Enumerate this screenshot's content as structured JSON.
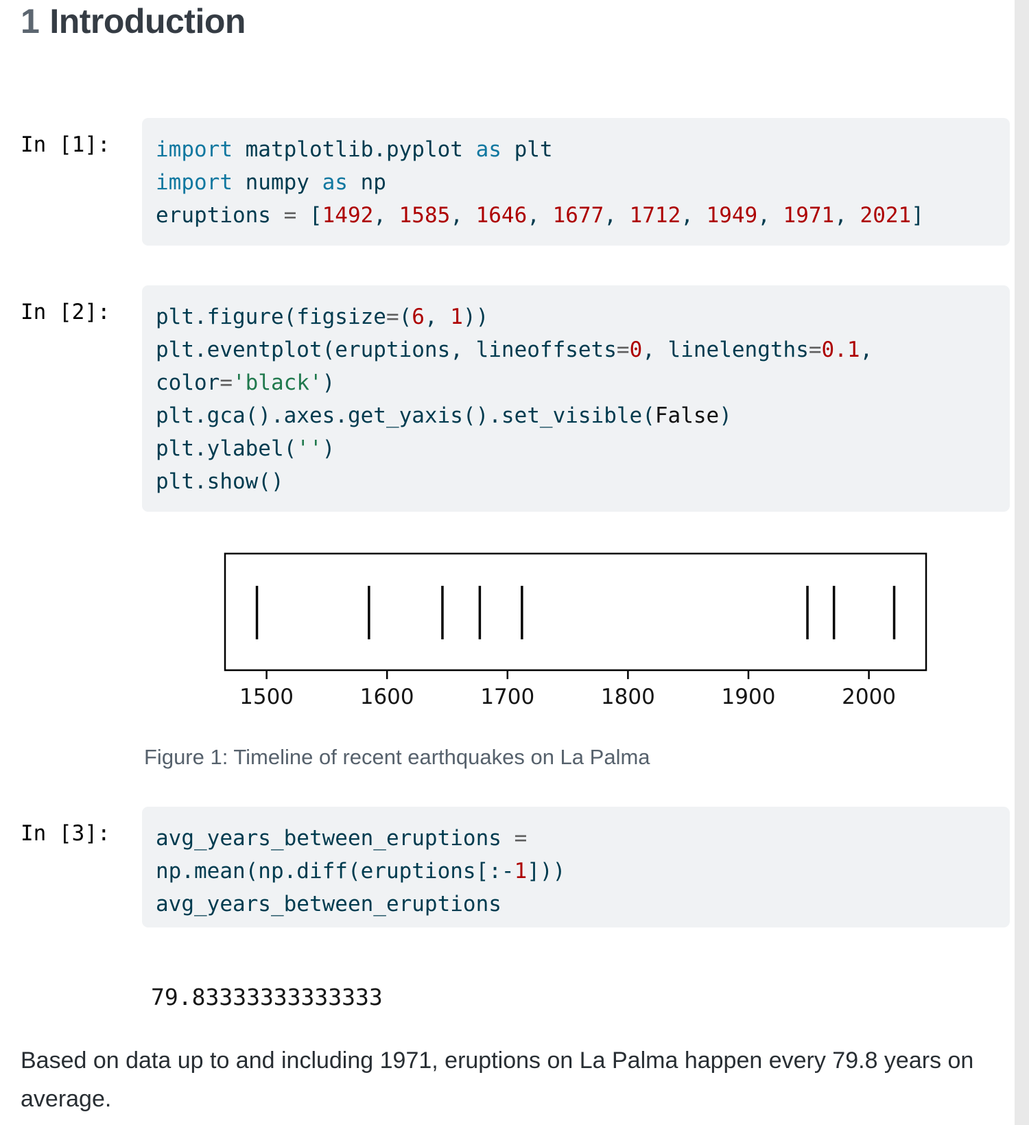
{
  "heading": {
    "number": "1",
    "text": "Introduction"
  },
  "cells": [
    {
      "label": "In [1]:",
      "lines": [
        [
          [
            "kw",
            "import"
          ],
          [
            "id",
            " matplotlib.pyplot"
          ],
          [
            "kw",
            " as"
          ],
          [
            "id",
            " plt"
          ]
        ],
        [
          [
            "kw",
            "import"
          ],
          [
            "id",
            " numpy"
          ],
          [
            "kw",
            " as"
          ],
          [
            "id",
            " np"
          ]
        ],
        [
          [
            "id",
            "eruptions "
          ],
          [
            "op",
            "="
          ],
          [
            "id",
            " ["
          ],
          [
            "num",
            "1492"
          ],
          [
            "id",
            ", "
          ],
          [
            "num",
            "1585"
          ],
          [
            "id",
            ", "
          ],
          [
            "num",
            "1646"
          ],
          [
            "id",
            ", "
          ],
          [
            "num",
            "1677"
          ],
          [
            "id",
            ", "
          ],
          [
            "num",
            "1712"
          ],
          [
            "id",
            ", "
          ],
          [
            "num",
            "1949"
          ],
          [
            "id",
            ", "
          ],
          [
            "num",
            "1971"
          ],
          [
            "id",
            ", "
          ],
          [
            "num",
            "2021"
          ],
          [
            "id",
            "]"
          ]
        ]
      ]
    },
    {
      "label": "In [2]:",
      "lines": [
        [
          [
            "id",
            "plt.figure(figsize"
          ],
          [
            "op",
            "="
          ],
          [
            "id",
            "("
          ],
          [
            "num",
            "6"
          ],
          [
            "id",
            ", "
          ],
          [
            "num",
            "1"
          ],
          [
            "id",
            "))"
          ]
        ],
        [
          [
            "id",
            "plt.eventplot(eruptions, lineoffsets"
          ],
          [
            "op",
            "="
          ],
          [
            "num",
            "0"
          ],
          [
            "id",
            ", linelengths"
          ],
          [
            "op",
            "="
          ],
          [
            "num",
            "0.1"
          ],
          [
            "id",
            ","
          ]
        ],
        [
          [
            "id",
            "color"
          ],
          [
            "op",
            "="
          ],
          [
            "str",
            "'black'"
          ],
          [
            "id",
            ")"
          ]
        ],
        [
          [
            "id",
            "plt.gca().axes.get_yaxis().set_visible("
          ],
          [
            "const",
            "False"
          ],
          [
            "id",
            ")"
          ]
        ],
        [
          [
            "id",
            "plt.ylabel("
          ],
          [
            "str",
            "''"
          ],
          [
            "id",
            ")"
          ]
        ],
        [
          [
            "id",
            "plt.show()"
          ]
        ]
      ]
    },
    {
      "label": "In [3]:",
      "lines": [
        [
          [
            "id",
            "avg_years_between_eruptions "
          ],
          [
            "op",
            "="
          ]
        ],
        [
          [
            "id",
            "np.mean(np.diff(eruptions[:-"
          ],
          [
            "num",
            "1"
          ],
          [
            "id",
            "]))"
          ]
        ],
        [
          [
            "id",
            "avg_years_between_eruptions"
          ]
        ]
      ],
      "output": "79.83333333333333"
    }
  ],
  "figure": {
    "caption": "Figure 1: Timeline of recent earthquakes on La Palma"
  },
  "chart_data": {
    "type": "scatter",
    "subtype": "eventplot-timeline",
    "title": "",
    "xlabel": "",
    "ylabel": "",
    "series": [
      {
        "name": "eruptions",
        "values": [
          1492,
          1585,
          1646,
          1677,
          1712,
          1949,
          1971,
          2021
        ]
      }
    ],
    "x": [
      1492,
      1585,
      1646,
      1677,
      1712,
      1949,
      1971,
      2021
    ],
    "xlim": [
      1465.5,
      2047.5
    ],
    "x_ticks": [
      1500,
      1600,
      1700,
      1800,
      1900,
      2000
    ],
    "y_axis_visible": false,
    "grid": false,
    "legend": false,
    "marker_color": "#000000"
  },
  "paragraph": "Based on data up to and including 1971, eruptions on La Palma happen every 79.8 years on average.",
  "colors": {
    "code_keyword": "#1178A0",
    "code_default": "#003B4F",
    "code_number": "#AD0000",
    "code_string": "#20794D",
    "code_operator": "#5E5E5E",
    "code_constant": "#111111",
    "code_background": "#F0F2F4",
    "caption_text": "#56616C",
    "heading_number": "#5C6670",
    "heading_text": "#353C44",
    "scrollbar_track": "#E9E9E9",
    "plot_stroke": "#000000"
  }
}
